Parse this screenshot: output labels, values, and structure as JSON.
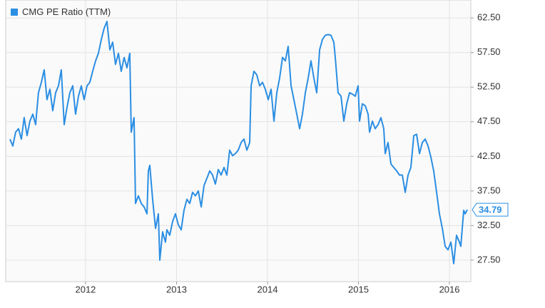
{
  "chart_data": {
    "type": "line",
    "xlim": [
      2011.122,
      2016.235
    ],
    "ylim": [
      24.4,
      65.1
    ],
    "xticks": [
      2012,
      2013,
      2014,
      2015,
      2016
    ],
    "yticks": [
      {
        "value": 27.5,
        "label": "27.50"
      },
      {
        "value": 32.5,
        "label": "32.50"
      },
      {
        "value": 37.5,
        "label": "37.50"
      },
      {
        "value": 42.5,
        "label": "42.50"
      },
      {
        "value": 47.5,
        "label": "47.50"
      },
      {
        "value": 52.5,
        "label": "52.50"
      },
      {
        "value": 57.5,
        "label": "57.50"
      },
      {
        "value": 62.5,
        "label": "62.50"
      }
    ],
    "grid": true,
    "legend": "top-left",
    "x": [
      2011.169,
      2011.2,
      2011.231,
      2011.263,
      2011.294,
      2011.325,
      2011.357,
      2011.388,
      2011.42,
      2011.451,
      2011.482,
      2011.514,
      2011.545,
      2011.576,
      2011.608,
      2011.639,
      2011.671,
      2011.702,
      2011.733,
      2011.765,
      2011.796,
      2011.827,
      2011.859,
      2011.89,
      2011.922,
      2011.953,
      2011.984,
      2012.016,
      2012.047,
      2012.078,
      2012.11,
      2012.141,
      2012.173,
      2012.204,
      2012.235,
      2012.267,
      2012.298,
      2012.329,
      2012.361,
      2012.392,
      2012.424,
      2012.455,
      2012.486,
      2012.502,
      2012.533,
      2012.549,
      2012.58,
      2012.612,
      2012.643,
      2012.675,
      2012.69,
      2012.706,
      2012.737,
      2012.769,
      2012.8,
      2012.816,
      2012.847,
      2012.878,
      2012.894,
      2012.925,
      2012.957,
      2012.988,
      2013.02,
      2013.051,
      2013.082,
      2013.114,
      2013.145,
      2013.176,
      2013.208,
      2013.239,
      2013.271,
      2013.302,
      2013.333,
      2013.365,
      2013.396,
      2013.427,
      2013.459,
      2013.49,
      2013.522,
      2013.553,
      2013.584,
      2013.616,
      2013.647,
      2013.678,
      2013.71,
      2013.741,
      2013.773,
      2013.804,
      2013.82,
      2013.851,
      2013.882,
      2013.914,
      2013.945,
      2013.976,
      2014.008,
      2014.039,
      2014.071,
      2014.102,
      2014.133,
      2014.165,
      2014.196,
      2014.227,
      2014.259,
      2014.29,
      2014.322,
      2014.353,
      2014.384,
      2014.416,
      2014.447,
      2014.478,
      2014.51,
      2014.541,
      2014.573,
      2014.604,
      2014.635,
      2014.667,
      2014.698,
      2014.729,
      2014.745,
      2014.776,
      2014.808,
      2014.839,
      2014.871,
      2014.902,
      2014.933,
      2014.965,
      2014.996,
      2015.012,
      2015.043,
      2015.075,
      2015.106,
      2015.122,
      2015.153,
      2015.184,
      2015.216,
      2015.247,
      2015.278,
      2015.294,
      2015.325,
      2015.357,
      2015.388,
      2015.42,
      2015.451,
      2015.482,
      2015.514,
      2015.545,
      2015.576,
      2015.608,
      2015.639,
      2015.671,
      2015.702,
      2015.733,
      2015.765,
      2015.796,
      2015.827,
      2015.859,
      2015.89,
      2015.922,
      2015.953,
      2015.984,
      2016.016,
      2016.047,
      2016.078,
      2016.11,
      2016.125,
      2016.157,
      2016.173,
      2016.196
    ],
    "series": [
      {
        "name": "CMG PE Ratio (TTM)",
        "color": "#2b8ee3",
        "values": [
          45.0,
          44.0,
          46.0,
          46.5,
          45.0,
          48.1,
          45.5,
          47.6,
          48.6,
          47.1,
          51.7,
          53.2,
          55.0,
          50.7,
          52.2,
          49.1,
          51.7,
          52.7,
          55.0,
          47.1,
          49.6,
          51.7,
          52.7,
          48.6,
          51.2,
          52.7,
          50.7,
          52.7,
          53.2,
          54.8,
          56.3,
          57.4,
          59.4,
          61.0,
          62.0,
          57.9,
          59.0,
          55.8,
          57.4,
          54.8,
          56.8,
          55.3,
          57.4,
          46.0,
          48.1,
          35.7,
          36.8,
          35.7,
          35.2,
          34.2,
          40.4,
          41.2,
          36.3,
          32.1,
          34.2,
          27.5,
          31.6,
          30.1,
          31.9,
          31.1,
          33.1,
          34.2,
          32.6,
          31.9,
          34.7,
          36.3,
          35.7,
          37.3,
          36.8,
          37.5,
          35.2,
          38.3,
          39.3,
          40.4,
          39.8,
          38.5,
          40.6,
          39.8,
          40.9,
          39.8,
          43.4,
          42.6,
          42.9,
          43.4,
          44.5,
          45.0,
          43.4,
          44.5,
          52.7,
          54.8,
          54.3,
          52.7,
          53.2,
          52.2,
          50.7,
          52.2,
          47.6,
          51.7,
          53.8,
          56.8,
          56.3,
          58.4,
          52.7,
          50.7,
          48.6,
          46.5,
          48.6,
          51.7,
          53.8,
          56.3,
          53.8,
          51.7,
          57.9,
          59.4,
          60.0,
          60.1,
          60.0,
          59.0,
          56.8,
          51.7,
          51.2,
          47.6,
          50.1,
          51.7,
          51.5,
          51.2,
          52.7,
          47.6,
          50.1,
          49.8,
          48.6,
          46.0,
          47.6,
          46.5,
          47.1,
          48.1,
          46.5,
          42.9,
          44.5,
          41.4,
          40.9,
          40.4,
          39.8,
          39.8,
          37.3,
          39.8,
          40.9,
          45.5,
          45.7,
          42.9,
          44.5,
          45.0,
          44.0,
          42.4,
          40.4,
          37.3,
          34.2,
          32.1,
          29.5,
          29.0,
          30.1,
          27.0,
          31.1,
          30.1,
          29.5,
          34.7,
          34.2,
          34.79
        ]
      }
    ]
  }
}
